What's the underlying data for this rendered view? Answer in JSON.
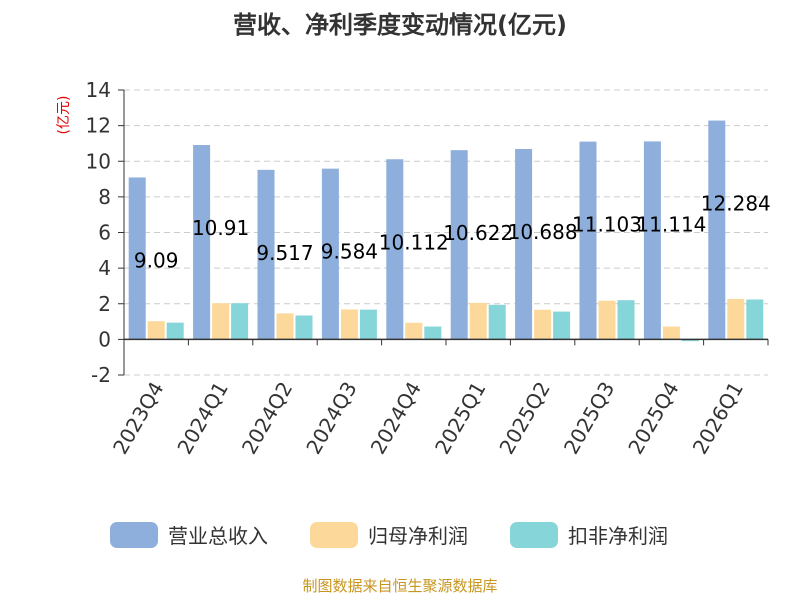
{
  "chart_data": {
    "type": "bar",
    "title": "营收、净利季度变动情况(亿元)",
    "unit_label": "(亿元)",
    "categories": [
      "2023Q4",
      "2024Q1",
      "2024Q2",
      "2024Q3",
      "2024Q4",
      "2025Q1",
      "2025Q2",
      "2025Q3",
      "2025Q4",
      "2026Q1"
    ],
    "series": [
      {
        "name": "营业总收入",
        "color": "#8EAEDB",
        "values": [
          9.09,
          10.91,
          9.517,
          9.584,
          10.112,
          10.622,
          10.688,
          11.103,
          11.114,
          12.284
        ],
        "labels": [
          "9.09",
          "10.91",
          "9.517",
          "9.584",
          "10.112",
          "10.622",
          "10.688",
          "11.103",
          "11.114",
          "12.284"
        ]
      },
      {
        "name": "归母净利润",
        "color": "#FCD89A",
        "values": [
          1.02,
          2.03,
          1.46,
          1.68,
          0.93,
          2.05,
          1.66,
          2.17,
          0.72,
          2.27
        ]
      },
      {
        "name": "扣非净利润",
        "color": "#86D5D8",
        "values": [
          0.94,
          2.03,
          1.34,
          1.67,
          0.72,
          1.94,
          1.56,
          2.2,
          -0.1,
          2.24
        ]
      }
    ],
    "yticks": [
      -2,
      0,
      2,
      4,
      6,
      8,
      10,
      12,
      14
    ],
    "ylim": [
      -2,
      14
    ],
    "grid": true,
    "legend_position": "bottom",
    "unit_color": "#E00000"
  },
  "source": {
    "text": "制图数据来自恒生聚源数据库",
    "color": "#C8961E"
  }
}
